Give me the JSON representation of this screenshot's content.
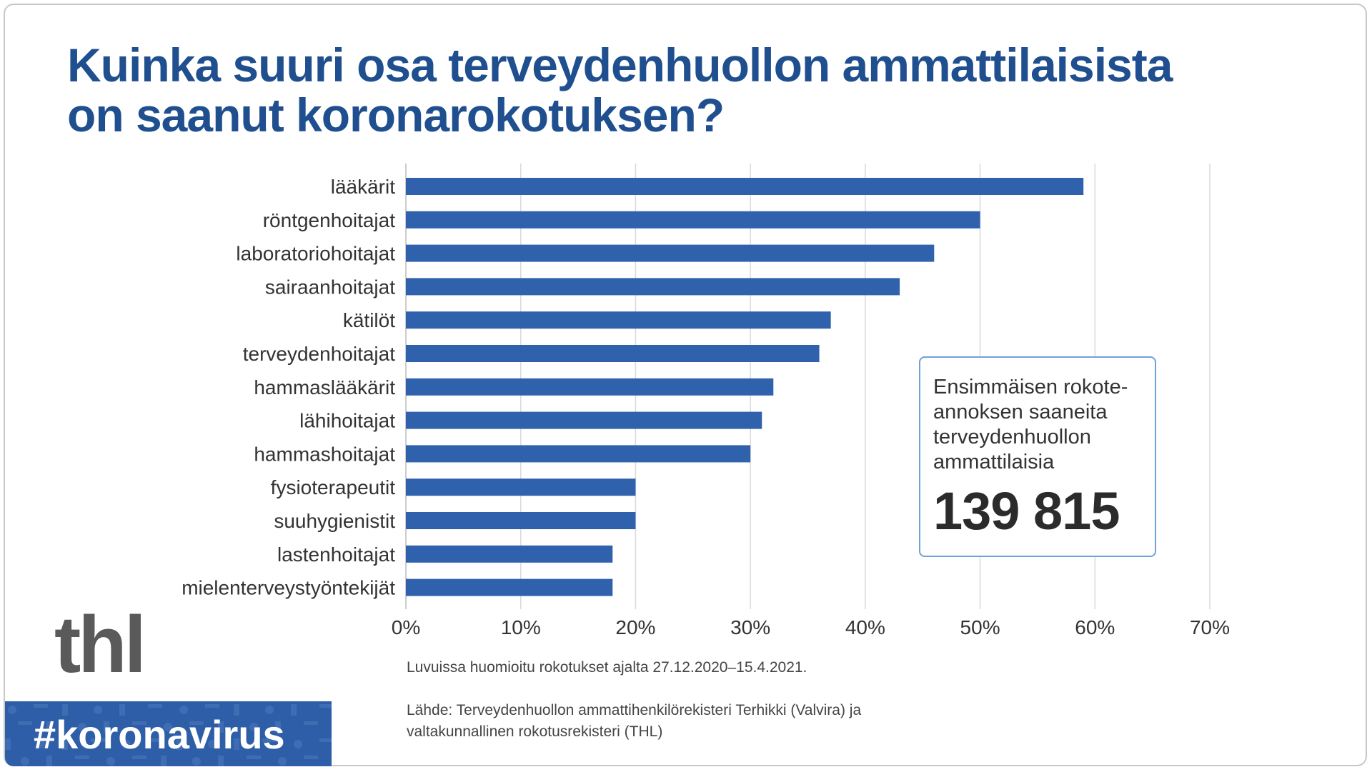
{
  "title_lines": [
    "Kuinka suuri osa terveydenhuollon ammattilaisista",
    "on saanut koronarokotuksen?"
  ],
  "chart_data": {
    "type": "bar",
    "orientation": "horizontal",
    "categories": [
      "lääkärit",
      "röntgenhoitajat",
      "laboratoriohoitajat",
      "sairaanhoitajat",
      "kätilöt",
      "terveydenhoitajat",
      "hammaslääkärit",
      "lähihoitajat",
      "hammashoitajat",
      "fysioterapeutit",
      "suuhygienistit",
      "lastenhoitajat",
      "mielenterveystyöntekijät"
    ],
    "values": [
      59,
      50,
      46,
      43,
      37,
      36,
      32,
      31,
      30,
      20,
      20,
      18,
      18
    ],
    "unit": "%",
    "xlim": [
      0,
      70
    ],
    "xticks": [
      "0%",
      "10%",
      "20%",
      "30%",
      "40%",
      "50%",
      "60%",
      "70%"
    ],
    "grid": true,
    "bar_color": "#2f61ad",
    "title": "Kuinka suuri osa terveydenhuollon ammattilaisista on saanut koronarokotuksen?"
  },
  "callout": {
    "text": "Ensimmäisen rokote-annoksen saaneita terveydenhuollon ammattilaisia",
    "lines": [
      "Ensimmäisen rokote-",
      "annoksen saaneita",
      "terveydenhuollon",
      "ammattilaisia"
    ],
    "number": "139 815"
  },
  "notes": {
    "period": "Luvuissa huomioitu rokotukset ajalta 27.12.2020–15.4.2021.",
    "source_lines": [
      "Lähde: Terveydenhuollon ammattihenkilörekisteri Terhikki (Valvira) ja",
      "valtakunnallinen rokotusrekisteri (THL)"
    ]
  },
  "logo": "thl",
  "hashtag": "#koronavirus"
}
